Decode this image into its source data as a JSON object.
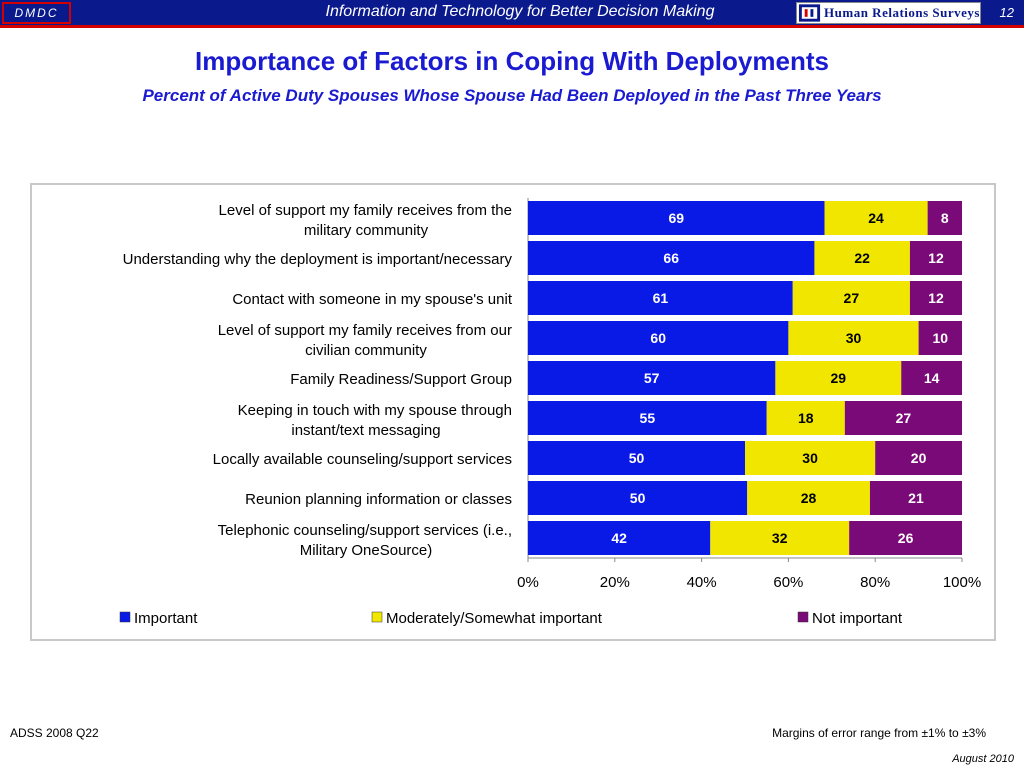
{
  "header": {
    "logo_left": "DMDC",
    "title": "Information and Technology for Better Decision Making",
    "logo_right": "Human Relations Surveys",
    "page_number": "12"
  },
  "titles": {
    "main": "Importance of Factors in Coping With Deployments",
    "sub": "Percent of Active Duty Spouses Whose Spouse Had Been Deployed in the Past Three Years"
  },
  "footer": {
    "source": "ADSS 2008 Q22",
    "margin_note": "Margins of error range from ±1% to ±3%",
    "date": "August 2010"
  },
  "colors": {
    "header_bg": "#0a1a8c",
    "accent_red": "#d40000",
    "title_blue": "#1a1ad0",
    "important": "#0a1ae6",
    "moderately": "#f0e600",
    "not_important": "#7a0a78"
  },
  "chart_data": {
    "type": "bar",
    "orientation": "horizontal",
    "stacked": "100%",
    "categories": [
      "Level of support my family receives from the military community",
      "Understanding why the deployment is important/necessary",
      "Contact with someone in my spouse's unit",
      "Level of support my family receives from our civilian community",
      "Family Readiness/Support Group",
      "Keeping in touch with my spouse through instant/text messaging",
      "Locally available counseling/support services",
      "Reunion planning information or classes",
      "Telephonic counseling/support services (i.e., Military OneSource)"
    ],
    "series": [
      {
        "name": "Important",
        "color": "#0a1ae6",
        "label_color": "#ffffff",
        "values": [
          69,
          66,
          61,
          60,
          57,
          55,
          50,
          50,
          42
        ]
      },
      {
        "name": "Moderately/Somewhat important",
        "color": "#f0e600",
        "label_color": "#000000",
        "values": [
          24,
          22,
          27,
          30,
          29,
          18,
          30,
          28,
          32
        ]
      },
      {
        "name": "Not important",
        "color": "#7a0a78",
        "label_color": "#ffffff",
        "values": [
          8,
          12,
          12,
          10,
          14,
          27,
          20,
          21,
          26
        ]
      }
    ],
    "xaxis": {
      "ticks": [
        "0%",
        "20%",
        "40%",
        "60%",
        "80%",
        "100%"
      ],
      "range": [
        0,
        100
      ]
    },
    "legend_position": "bottom"
  }
}
